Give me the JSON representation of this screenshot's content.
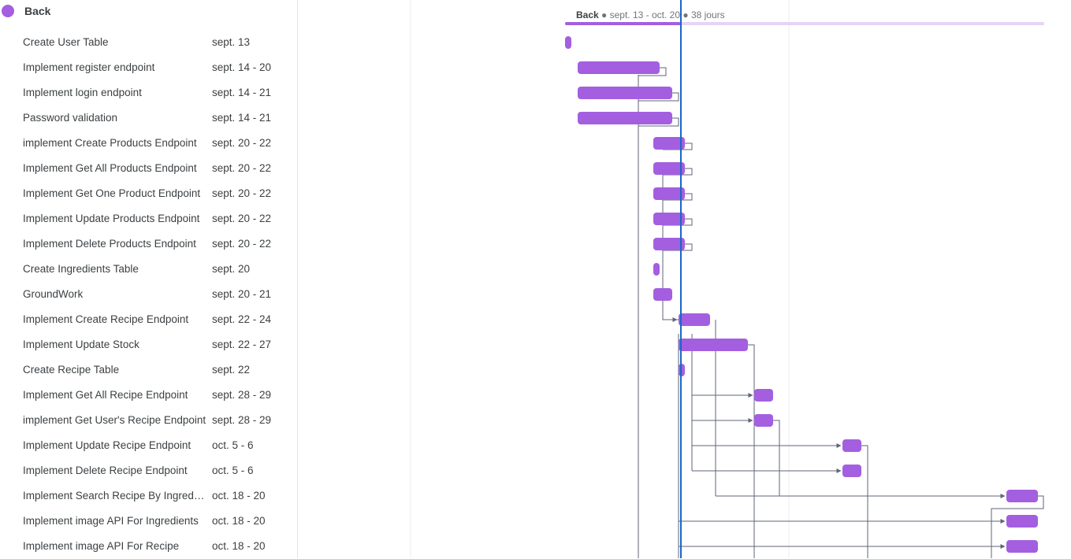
{
  "colors": {
    "bar": "#a35fe0",
    "summary_track": "#e5d4f5",
    "today_line": "#1a66c6",
    "connector": "#5f6578",
    "grid": "#ececec"
  },
  "group": {
    "name": "Back",
    "summary": {
      "name": "Back",
      "dates": "sept. 13 - oct. 20",
      "duration": "38 jours",
      "separator": "●"
    }
  },
  "timeline_start": "2023-09-13",
  "today": "2023-09-22",
  "tasks": [
    {
      "name": "Create User Table",
      "dates": "sept. 13",
      "start": "2023-09-13",
      "end": "2023-09-13"
    },
    {
      "name": "Implement register endpoint",
      "dates": "sept. 14 - 20",
      "start": "2023-09-14",
      "end": "2023-09-20"
    },
    {
      "name": "Implement login endpoint",
      "dates": "sept. 14 - 21",
      "start": "2023-09-14",
      "end": "2023-09-21"
    },
    {
      "name": "Password validation",
      "dates": "sept. 14 - 21",
      "start": "2023-09-14",
      "end": "2023-09-21"
    },
    {
      "name": "implement Create Products Endpoint",
      "dates": "sept. 20 - 22",
      "start": "2023-09-20",
      "end": "2023-09-22"
    },
    {
      "name": "Implement Get All Products Endpoint",
      "dates": "sept. 20 - 22",
      "start": "2023-09-20",
      "end": "2023-09-22"
    },
    {
      "name": "Implement Get One Product Endpoint",
      "dates": "sept. 20 - 22",
      "start": "2023-09-20",
      "end": "2023-09-22"
    },
    {
      "name": "Implement Update Products Endpoint",
      "dates": "sept. 20 - 22",
      "start": "2023-09-20",
      "end": "2023-09-22"
    },
    {
      "name": "Implement Delete Products Endpoint",
      "dates": "sept. 20 - 22",
      "start": "2023-09-20",
      "end": "2023-09-22"
    },
    {
      "name": "Create Ingredients Table",
      "dates": "sept. 20",
      "start": "2023-09-20",
      "end": "2023-09-20"
    },
    {
      "name": "GroundWork",
      "dates": "sept. 20 - 21",
      "start": "2023-09-20",
      "end": "2023-09-21"
    },
    {
      "name": "Implement Create Recipe Endpoint",
      "dates": "sept. 22 - 24",
      "start": "2023-09-22",
      "end": "2023-09-24"
    },
    {
      "name": "Implement Update Stock",
      "dates": "sept. 22 - 27",
      "start": "2023-09-22",
      "end": "2023-09-27"
    },
    {
      "name": "Create Recipe Table",
      "dates": "sept. 22",
      "start": "2023-09-22",
      "end": "2023-09-22"
    },
    {
      "name": "Implement Get All Recipe Endpoint",
      "dates": "sept. 28 - 29",
      "start": "2023-09-28",
      "end": "2023-09-29"
    },
    {
      "name": "implement Get User's Recipe Endpoint",
      "dates": "sept. 28 - 29",
      "start": "2023-09-28",
      "end": "2023-09-29"
    },
    {
      "name": "Implement Update Recipe Endpoint",
      "dates": "oct. 5 - 6",
      "start": "2023-10-05",
      "end": "2023-10-06"
    },
    {
      "name": "Implement Delete Recipe Endpoint",
      "dates": "oct. 5 - 6",
      "start": "2023-10-05",
      "end": "2023-10-06"
    },
    {
      "name": "Implement Search Recipe By Ingredients",
      "dates": "oct. 18 - 20",
      "start": "2023-10-18",
      "end": "2023-10-20"
    },
    {
      "name": "Implement image API For Ingredients",
      "dates": "oct. 18 - 20",
      "start": "2023-10-18",
      "end": "2023-10-20"
    },
    {
      "name": "Implement image API For Recipe",
      "dates": "oct. 18 - 20",
      "start": "2023-10-18",
      "end": "2023-10-20"
    }
  ]
}
